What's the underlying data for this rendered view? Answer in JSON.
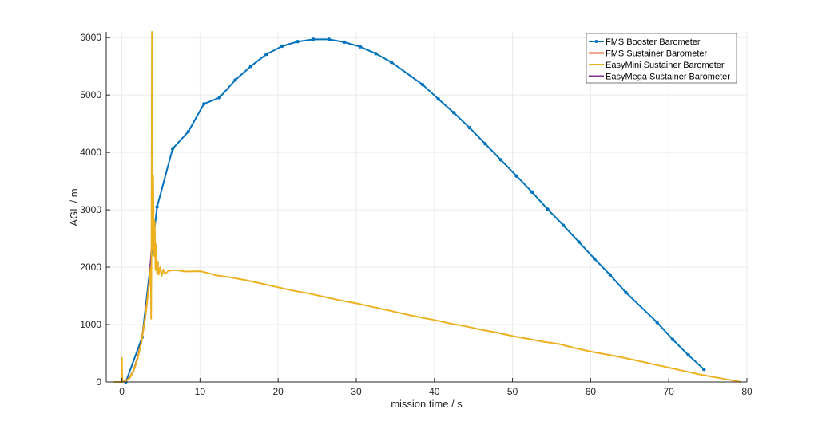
{
  "chart_data": {
    "type": "line",
    "title": "",
    "xlabel": "mission time / s",
    "ylabel": "AGL / m",
    "xlim": [
      -2,
      80
    ],
    "ylim": [
      0,
      6100
    ],
    "xticks": [
      0,
      10,
      20,
      30,
      40,
      50,
      60,
      70,
      80
    ],
    "yticks": [
      0,
      1000,
      2000,
      3000,
      4000,
      5000,
      6000
    ],
    "grid": true,
    "legend_placement": "top-right",
    "series": [
      {
        "name": "FMS Booster Barometer",
        "color": "#0072BD",
        "markers": true,
        "points": [
          [
            0.5,
            0
          ],
          [
            2.6,
            780
          ],
          [
            4.5,
            3050
          ],
          [
            6.5,
            4065
          ],
          [
            8.5,
            4360
          ],
          [
            10.5,
            4845
          ],
          [
            12.5,
            4955
          ],
          [
            14.5,
            5260
          ],
          [
            16.5,
            5500
          ],
          [
            18.5,
            5710
          ],
          [
            20.5,
            5850
          ],
          [
            22.5,
            5930
          ],
          [
            24.5,
            5970
          ],
          [
            26.5,
            5970
          ],
          [
            28.5,
            5920
          ],
          [
            30.5,
            5840
          ],
          [
            32.5,
            5720
          ],
          [
            34.5,
            5570
          ],
          [
            38.5,
            5180
          ],
          [
            40.5,
            4930
          ],
          [
            42.5,
            4690
          ],
          [
            44.5,
            4430
          ],
          [
            46.5,
            4150
          ],
          [
            48.5,
            3870
          ],
          [
            50.5,
            3590
          ],
          [
            52.5,
            3310
          ],
          [
            54.5,
            3010
          ],
          [
            56.5,
            2730
          ],
          [
            58.5,
            2440
          ],
          [
            60.5,
            2145
          ],
          [
            62.5,
            1865
          ],
          [
            64.5,
            1560
          ],
          [
            68.5,
            1040
          ],
          [
            70.5,
            740
          ],
          [
            72.5,
            470
          ],
          [
            74.5,
            220
          ]
        ]
      },
      {
        "name": "FMS Sustainer Barometer",
        "color": "#D95319",
        "markers": false,
        "points": [
          [
            -1,
            0
          ],
          [
            0,
            0
          ],
          [
            0.5,
            20
          ],
          [
            1,
            80
          ],
          [
            1.5,
            200
          ],
          [
            2,
            420
          ],
          [
            2.5,
            700
          ],
          [
            3,
            1150
          ],
          [
            3.5,
            1750
          ],
          [
            3.8,
            2250
          ]
        ]
      },
      {
        "name": "EasyMini Sustainer Barometer",
        "color": "#EDB120",
        "markers": false,
        "points": [
          [
            -1,
            0
          ],
          [
            -0.05,
            0
          ],
          [
            0,
            420
          ],
          [
            0.05,
            0
          ],
          [
            0.5,
            15
          ],
          [
            1,
            70
          ],
          [
            1.5,
            190
          ],
          [
            2,
            400
          ],
          [
            2.5,
            690
          ],
          [
            3,
            1130
          ],
          [
            3.5,
            1720
          ],
          [
            3.7,
            2000
          ],
          [
            3.75,
            1100
          ],
          [
            3.8,
            2400
          ],
          [
            3.85,
            6100
          ],
          [
            3.9,
            2300
          ],
          [
            4.0,
            3600
          ],
          [
            4.1,
            2200
          ],
          [
            4.2,
            2800
          ],
          [
            4.3,
            1950
          ],
          [
            4.4,
            2400
          ],
          [
            4.5,
            1900
          ],
          [
            4.6,
            2100
          ],
          [
            4.7,
            1870
          ],
          [
            4.9,
            2000
          ],
          [
            5.1,
            1850
          ],
          [
            5.3,
            1960
          ],
          [
            5.5,
            1880
          ],
          [
            6,
            1940
          ],
          [
            7,
            1950
          ],
          [
            8,
            1925
          ],
          [
            10,
            1930
          ],
          [
            11,
            1900
          ],
          [
            12,
            1860
          ],
          [
            14,
            1820
          ],
          [
            16,
            1770
          ],
          [
            18,
            1710
          ],
          [
            20,
            1650
          ],
          [
            22,
            1590
          ],
          [
            24,
            1540
          ],
          [
            26,
            1480
          ],
          [
            28,
            1420
          ],
          [
            30,
            1370
          ],
          [
            32,
            1310
          ],
          [
            34,
            1250
          ],
          [
            36,
            1190
          ],
          [
            38,
            1130
          ],
          [
            40,
            1080
          ],
          [
            42,
            1020
          ],
          [
            44,
            970
          ],
          [
            46,
            910
          ],
          [
            48,
            860
          ],
          [
            50,
            800
          ],
          [
            52,
            750
          ],
          [
            54,
            700
          ],
          [
            56,
            660
          ],
          [
            58,
            590
          ],
          [
            60,
            530
          ],
          [
            62,
            480
          ],
          [
            64,
            430
          ],
          [
            66,
            370
          ],
          [
            68,
            310
          ],
          [
            70,
            250
          ],
          [
            72,
            190
          ],
          [
            74,
            130
          ],
          [
            76,
            80
          ],
          [
            78,
            30
          ],
          [
            79.2,
            0
          ]
        ]
      },
      {
        "name": "EasyMega Sustainer Barometer",
        "color": "#7E2F8E",
        "markers": false,
        "points": [
          [
            0,
            0
          ],
          [
            0.5,
            15
          ],
          [
            1,
            70
          ],
          [
            1.5,
            190
          ],
          [
            2,
            410
          ],
          [
            2.5,
            690
          ],
          [
            3,
            1140
          ],
          [
            3.5,
            1740
          ],
          [
            3.8,
            2320
          ]
        ]
      }
    ]
  }
}
